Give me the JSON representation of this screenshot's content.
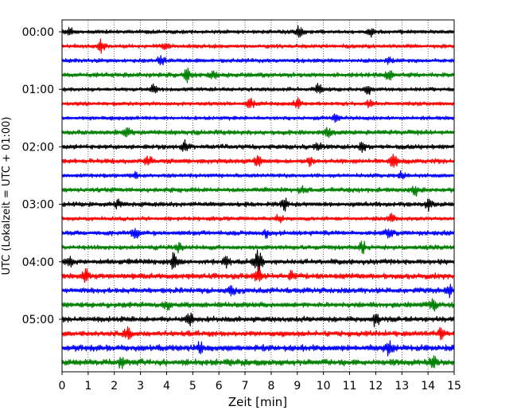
{
  "chart_data": {
    "type": "line",
    "subtype": "seismogram-helicorder",
    "xlabel": "Zeit  [min]",
    "ylabel": "UTC (Lokalzeit = UTC + 01:00)",
    "xlim": [
      0,
      15
    ],
    "x_ticks": [
      "0",
      "1",
      "2",
      "3",
      "4",
      "5",
      "6",
      "7",
      "8",
      "9",
      "10",
      "11",
      "12",
      "13",
      "14",
      "15"
    ],
    "y_tick_labels": [
      "00:00",
      "01:00",
      "02:00",
      "03:00",
      "04:00",
      "05:00"
    ],
    "grid": "vertical dotted lines at each minute",
    "trace_interval_minutes": 15,
    "trace_colors": [
      "#000000",
      "#ff0000",
      "#0000ff",
      "#008000"
    ],
    "traces": [
      {
        "start": "00:00",
        "color": "#000000",
        "amplitude": 2.5,
        "events": [
          [
            9.1,
            7
          ],
          [
            11.8,
            5
          ],
          [
            0.3,
            4
          ]
        ]
      },
      {
        "start": "00:15",
        "color": "#ff0000",
        "amplitude": 2.5,
        "events": [
          [
            1.5,
            8
          ],
          [
            4.0,
            4
          ]
        ]
      },
      {
        "start": "00:30",
        "color": "#0000ff",
        "amplitude": 2.5,
        "events": [
          [
            3.8,
            5
          ],
          [
            12.5,
            4
          ]
        ]
      },
      {
        "start": "00:45",
        "color": "#008000",
        "amplitude": 3.0,
        "events": [
          [
            4.8,
            7
          ],
          [
            5.8,
            5
          ],
          [
            12.5,
            5
          ]
        ]
      },
      {
        "start": "01:00",
        "color": "#000000",
        "amplitude": 2.5,
        "events": [
          [
            3.5,
            5
          ],
          [
            9.8,
            6
          ],
          [
            11.7,
            6
          ]
        ]
      },
      {
        "start": "01:15",
        "color": "#ff0000",
        "amplitude": 2.5,
        "events": [
          [
            7.2,
            6
          ],
          [
            9.0,
            5
          ],
          [
            11.8,
            5
          ]
        ]
      },
      {
        "start": "01:30",
        "color": "#0000ff",
        "amplitude": 2.5,
        "events": [
          [
            10.5,
            5
          ]
        ]
      },
      {
        "start": "01:45",
        "color": "#008000",
        "amplitude": 3.0,
        "events": [
          [
            2.5,
            5
          ],
          [
            10.2,
            5
          ]
        ]
      },
      {
        "start": "02:00",
        "color": "#000000",
        "amplitude": 3.0,
        "events": [
          [
            4.7,
            6
          ],
          [
            9.8,
            5
          ],
          [
            11.5,
            5
          ]
        ]
      },
      {
        "start": "02:15",
        "color": "#ff0000",
        "amplitude": 3.0,
        "events": [
          [
            3.3,
            6
          ],
          [
            7.5,
            7
          ],
          [
            9.5,
            5
          ],
          [
            12.7,
            8
          ]
        ]
      },
      {
        "start": "02:30",
        "color": "#0000ff",
        "amplitude": 2.5,
        "events": [
          [
            2.8,
            4
          ],
          [
            13.0,
            5
          ]
        ]
      },
      {
        "start": "02:45",
        "color": "#008000",
        "amplitude": 3.0,
        "events": [
          [
            9.2,
            5
          ],
          [
            13.5,
            6
          ]
        ]
      },
      {
        "start": "03:00",
        "color": "#000000",
        "amplitude": 3.0,
        "events": [
          [
            2.1,
            5
          ],
          [
            8.5,
            6
          ],
          [
            14.0,
            6
          ]
        ]
      },
      {
        "start": "03:15",
        "color": "#ff0000",
        "amplitude": 2.5,
        "events": [
          [
            8.3,
            5
          ],
          [
            12.6,
            5
          ]
        ]
      },
      {
        "start": "03:30",
        "color": "#0000ff",
        "amplitude": 3.0,
        "events": [
          [
            2.8,
            5
          ],
          [
            7.8,
            5
          ],
          [
            12.5,
            5
          ]
        ]
      },
      {
        "start": "03:45",
        "color": "#008000",
        "amplitude": 3.0,
        "events": [
          [
            4.5,
            6
          ],
          [
            11.5,
            6
          ]
        ]
      },
      {
        "start": "04:00",
        "color": "#000000",
        "amplitude": 3.5,
        "events": [
          [
            4.3,
            12
          ],
          [
            7.5,
            16
          ],
          [
            0.3,
            5
          ],
          [
            6.3,
            6
          ]
        ]
      },
      {
        "start": "04:15",
        "color": "#ff0000",
        "amplitude": 3.5,
        "events": [
          [
            0.9,
            8
          ],
          [
            7.5,
            10
          ],
          [
            8.8,
            5
          ]
        ]
      },
      {
        "start": "04:30",
        "color": "#0000ff",
        "amplitude": 3.5,
        "events": [
          [
            6.5,
            5
          ],
          [
            14.8,
            6
          ]
        ]
      },
      {
        "start": "04:45",
        "color": "#008000",
        "amplitude": 3.5,
        "events": [
          [
            4.0,
            5
          ],
          [
            14.2,
            6
          ]
        ]
      },
      {
        "start": "05:00",
        "color": "#000000",
        "amplitude": 3.5,
        "events": [
          [
            4.9,
            6
          ],
          [
            12.0,
            7
          ]
        ]
      },
      {
        "start": "05:15",
        "color": "#ff0000",
        "amplitude": 3.5,
        "events": [
          [
            2.5,
            6
          ],
          [
            14.5,
            5
          ]
        ]
      },
      {
        "start": "05:30",
        "color": "#0000ff",
        "amplitude": 4.0,
        "events": [
          [
            5.3,
            6
          ],
          [
            12.5,
            8
          ]
        ]
      },
      {
        "start": "05:45",
        "color": "#008000",
        "amplitude": 4.0,
        "events": [
          [
            2.3,
            6
          ],
          [
            14.2,
            6
          ]
        ]
      }
    ]
  }
}
